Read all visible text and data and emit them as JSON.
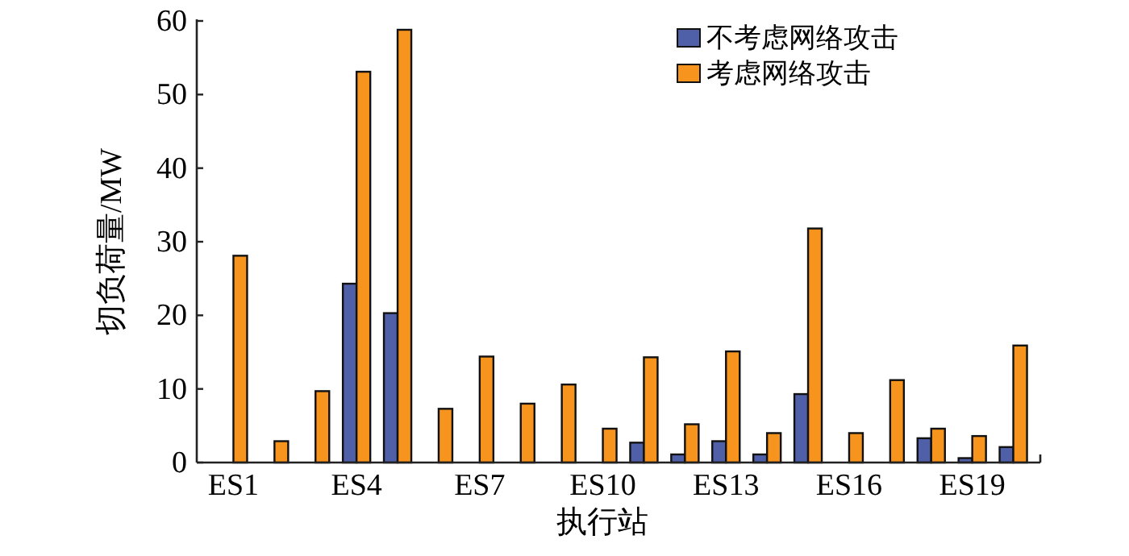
{
  "chart_data": {
    "type": "bar",
    "xlabel": "执行站",
    "ylabel": "切负荷量/MW",
    "categories": [
      "ES1",
      null,
      null,
      "ES4",
      null,
      null,
      "ES7",
      null,
      null,
      "ES10",
      null,
      null,
      "ES13",
      null,
      null,
      "ES16",
      null,
      null,
      "ES19",
      null
    ],
    "series": [
      {
        "name": "不考虑网络攻击",
        "color": "#4f5fa8",
        "values": [
          0,
          0,
          0,
          24.3,
          20.3,
          0,
          0,
          0,
          0,
          0,
          2.7,
          1.1,
          2.9,
          1.1,
          9.3,
          0,
          0,
          3.3,
          0.6,
          2.1
        ]
      },
      {
        "name": "考虑网络攻击",
        "color": "#f7941d",
        "values": [
          28.1,
          2.9,
          9.7,
          53.1,
          58.8,
          7.3,
          14.4,
          8.0,
          10.6,
          4.6,
          14.3,
          5.2,
          15.1,
          4.0,
          31.8,
          4.0,
          11.2,
          4.6,
          3.6,
          15.9
        ]
      }
    ],
    "ylim": [
      0,
      60
    ],
    "yticks": [
      0,
      10,
      20,
      30,
      40,
      50,
      60
    ],
    "grid": false,
    "legend": "top right"
  }
}
